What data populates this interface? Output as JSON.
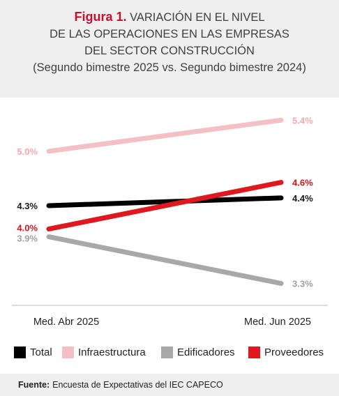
{
  "header": {
    "figure_label": "Figura 1.",
    "title_line1": "VARIACIÓN EN EL NIVEL",
    "title_line2": "DE LAS OPERACIONES EN LAS EMPRESAS",
    "title_line3": "DEL SECTOR CONSTRUCCIÓN",
    "subtitle": "(Segundo bimestre 2025 vs. Segundo bimestre 2024)"
  },
  "chart_data": {
    "type": "line",
    "categories": [
      "Med. Abr 2025",
      "Med. Jun 2025"
    ],
    "series": [
      {
        "name": "Total",
        "values": [
          4.3,
          4.4
        ],
        "labels": [
          "4.3%",
          "4.4%"
        ],
        "color": "#000000",
        "label_color": "#1a1a1a"
      },
      {
        "name": "Infraestructura",
        "values": [
          5.0,
          5.4
        ],
        "labels": [
          "5.0%",
          "5.4%"
        ],
        "color": "#f4c0c3",
        "label_color": "#f4a8ad"
      },
      {
        "name": "Edificadores",
        "values": [
          3.9,
          3.3
        ],
        "labels": [
          "3.9%",
          "3.3%"
        ],
        "color": "#a8a8a8",
        "label_color": "#a0a0a0"
      },
      {
        "name": "Proveedores",
        "values": [
          4.0,
          4.6
        ],
        "labels": [
          "4.0%",
          "4.6%"
        ],
        "color": "#e0171f",
        "label_color": "#d4141c"
      }
    ],
    "ylim": [
      3.0,
      5.6
    ],
    "legend_position": "bottom",
    "grid": false
  },
  "footer": {
    "source_label": "Fuente:",
    "source_text": "Encuesta de Expectativas del IEC CAPECO"
  }
}
